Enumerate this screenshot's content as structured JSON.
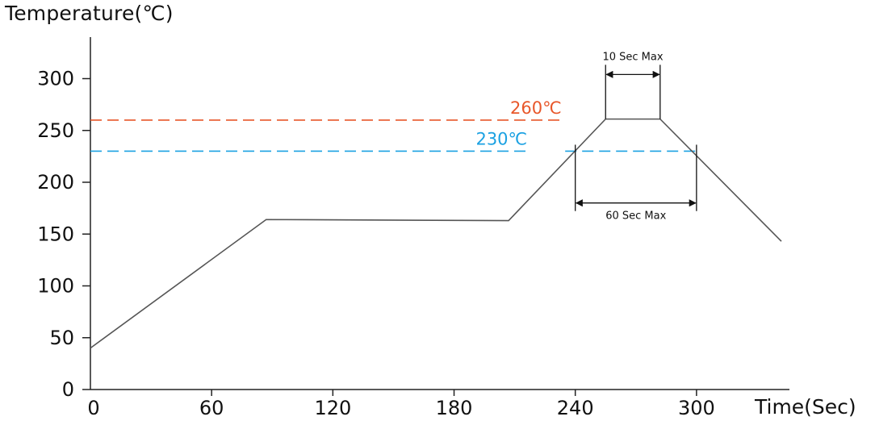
{
  "chart_data": {
    "type": "line",
    "title": "",
    "ylabel": "Temperature(℃)",
    "xlabel": "Time(Sec)",
    "xlim": [
      0,
      346
    ],
    "ylim": [
      0,
      335
    ],
    "x_ticks": [
      {
        "value": 0,
        "label": "0"
      },
      {
        "value": 60,
        "label": "60"
      },
      {
        "value": 120,
        "label": "120"
      },
      {
        "value": 180,
        "label": "180"
      },
      {
        "value": 240,
        "label": "240"
      },
      {
        "value": 300,
        "label": "300"
      }
    ],
    "y_ticks": [
      {
        "value": 0,
        "label": "0"
      },
      {
        "value": 50,
        "label": "50"
      },
      {
        "value": 100,
        "label": "100"
      },
      {
        "value": 150,
        "label": "150"
      },
      {
        "value": 200,
        "label": "200"
      },
      {
        "value": 250,
        "label": "250"
      },
      {
        "value": 300,
        "label": "300"
      }
    ],
    "series": [
      {
        "x": [
          0,
          87,
          207,
          255,
          282,
          342
        ],
        "y": [
          40,
          164,
          163,
          261,
          261,
          143
        ]
      }
    ],
    "reference_lines": [
      {
        "label": "260℃",
        "value": 260,
        "x_end": 234,
        "x_resume": null,
        "color": "#e8572a"
      },
      {
        "label": "230℃",
        "value": 230,
        "x_end": 217,
        "x_resume": 235,
        "color": "#1ba1e2"
      }
    ],
    "annotations": [
      {
        "label": "10 Sec Max",
        "x_start": 255,
        "x_end": 282,
        "y": 261,
        "arrow_y": 304
      },
      {
        "label": "60 Sec Max",
        "x_start": 240,
        "x_end": 300,
        "y": 230,
        "arrow_y": 180
      }
    ],
    "grid": false,
    "legend": "none"
  },
  "colors": {
    "line": "#555555",
    "axis": "#222222"
  }
}
